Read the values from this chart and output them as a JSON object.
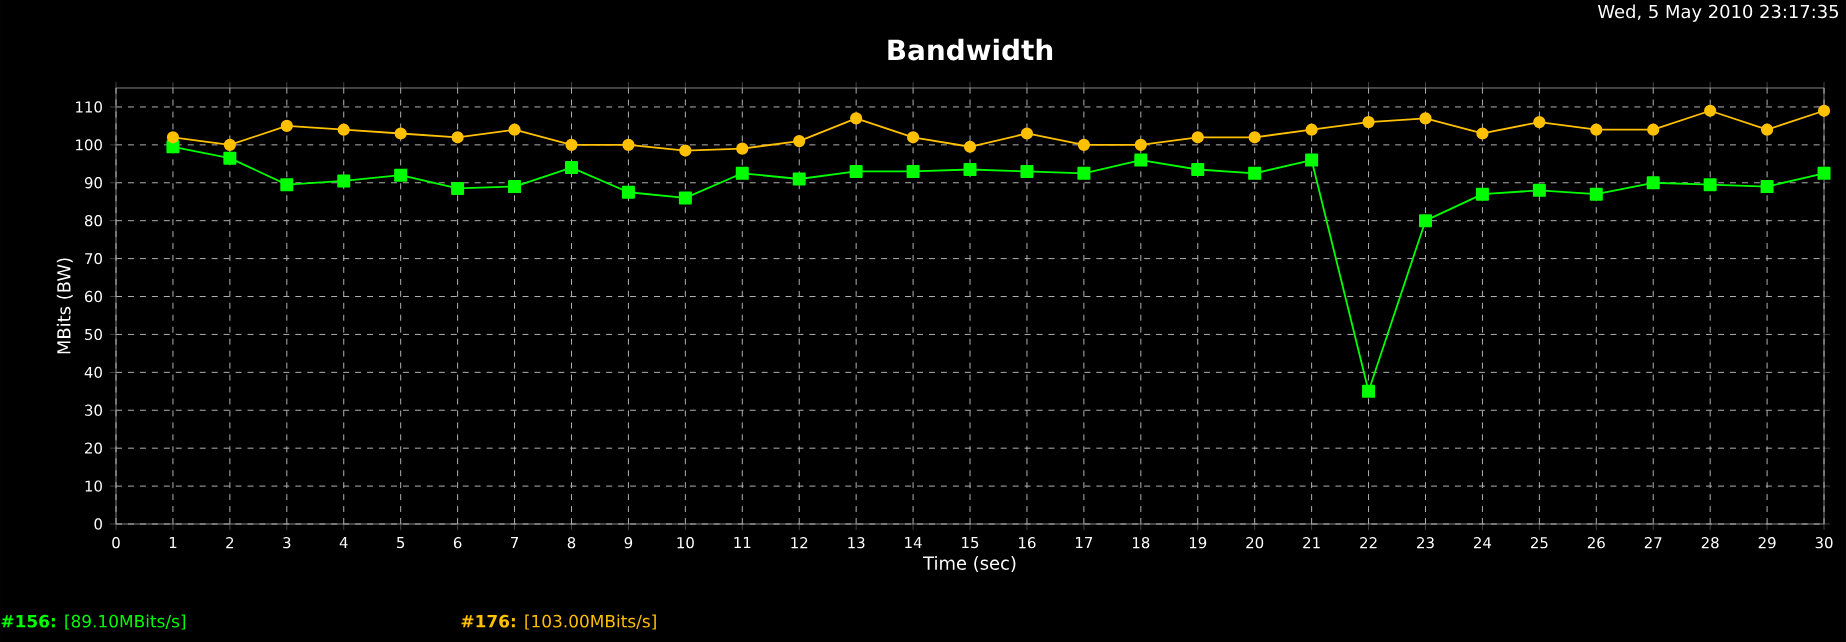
{
  "chart_data": {
    "type": "line",
    "title": "Bandwidth",
    "xlabel": "Time (sec)",
    "ylabel": "MBits (BW)",
    "annotations": [
      "Wed, 5 May 2010 23:17:35"
    ],
    "x": [
      1,
      2,
      3,
      4,
      5,
      6,
      7,
      8,
      9,
      10,
      11,
      12,
      13,
      14,
      15,
      16,
      17,
      18,
      19,
      20,
      21,
      22,
      23,
      24,
      25,
      26,
      27,
      28,
      29,
      30
    ],
    "series": [
      {
        "name": "**#156:** [89.10MBits/s]",
        "color": "#00ff00",
        "marker": "square",
        "values": [
          99.5,
          96.5,
          89.5,
          90.5,
          92,
          88.5,
          89,
          94,
          87.5,
          86,
          92.5,
          91,
          93,
          93,
          93.5,
          93,
          92.5,
          96,
          93.5,
          92.5,
          96,
          35,
          80,
          87,
          88,
          87,
          90,
          89.5,
          89,
          92.5
        ]
      },
      {
        "name": "**#176:** [103.00MBits/s]",
        "color": "#ffc000",
        "marker": "circle",
        "values": [
          102,
          100,
          105,
          104,
          103,
          102,
          104,
          100,
          100,
          98.5,
          99,
          101,
          107,
          102,
          99.5,
          103,
          100,
          100,
          102,
          102,
          104,
          106,
          107,
          103,
          106,
          104,
          104,
          109,
          104,
          109
        ]
      }
    ],
    "xlim": [
      0,
      30
    ],
    "xticks": [
      0,
      1,
      2,
      3,
      4,
      5,
      6,
      7,
      8,
      9,
      10,
      11,
      12,
      13,
      14,
      15,
      16,
      17,
      18,
      19,
      20,
      21,
      22,
      23,
      24,
      25,
      26,
      27,
      28,
      29,
      30
    ],
    "ylim": [
      0,
      115
    ],
    "yticks": [
      0,
      10,
      20,
      30,
      40,
      50,
      60,
      70,
      80,
      90,
      100,
      110
    ],
    "grid": true,
    "legend": "bottom left",
    "line_style": "solid"
  }
}
